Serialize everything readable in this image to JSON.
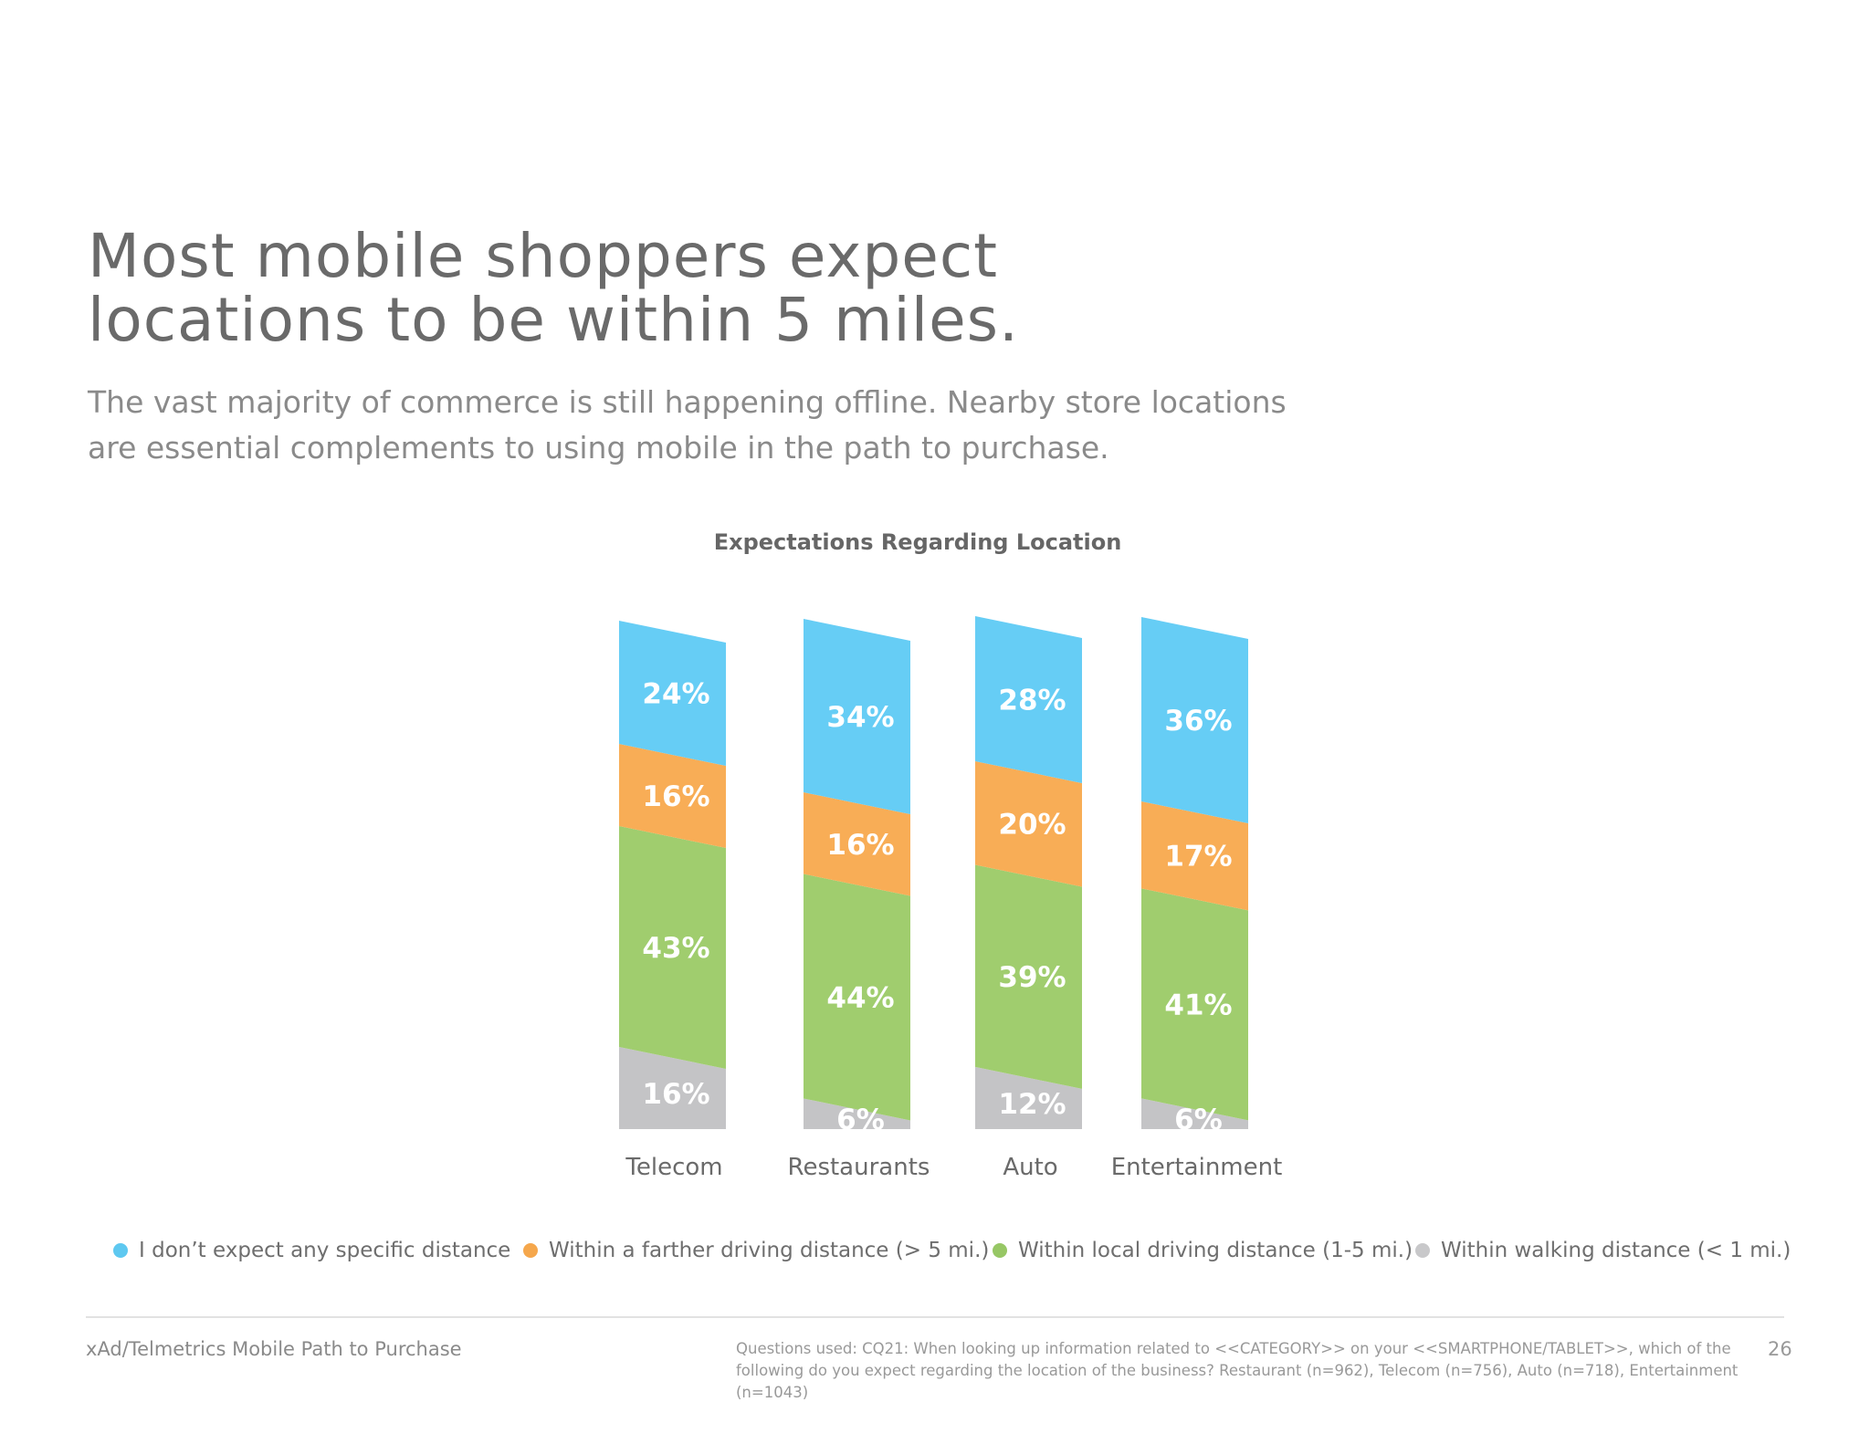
{
  "headline": {
    "line1": "Most mobile shoppers expect",
    "line2": "locations to be within 5 miles."
  },
  "subhead": "The vast majority of commerce is still happening offline. Nearby store locations are essential complements to using mobile in the path to purchase.",
  "chart_data": {
    "type": "bar",
    "stacked": true,
    "title": "Expectations Regarding Location",
    "categories": [
      "Telecom",
      "Restaurants",
      "Auto",
      "Entertainment"
    ],
    "series": [
      {
        "name": "Within walking distance (< 1 mi.)",
        "color": "#c4c4c6",
        "values": [
          16,
          6,
          12,
          6
        ],
        "labels": [
          "16%",
          "6%",
          "12%",
          "6%"
        ]
      },
      {
        "name": "Within local driving distance (1-5 mi.)",
        "color": "#a0cd6e",
        "values": [
          43,
          44,
          39,
          41
        ],
        "labels": [
          "43%",
          "44%",
          "39%",
          "41%"
        ]
      },
      {
        "name": "Within a farther driving distance (> 5 mi.)",
        "color": "#f8ad56",
        "values": [
          16,
          16,
          20,
          17
        ],
        "labels": [
          "16%",
          "16%",
          "20%",
          "17%"
        ]
      },
      {
        "name": "I don’t expect any specific distance",
        "color": "#66cdf5",
        "values": [
          24,
          34,
          28,
          36
        ],
        "labels": [
          "24%",
          "34%",
          "28%",
          "36%"
        ]
      }
    ],
    "legend": "bottom",
    "grid": false
  },
  "legend": [
    {
      "label": "I don’t expect any specific distance",
      "color": "#5ec8f0"
    },
    {
      "label": "Within a farther driving distance (> 5 mi.)",
      "color": "#f5a74c"
    },
    {
      "label": "Within local driving distance (1-5 mi.)",
      "color": "#97c765"
    },
    {
      "label": "Within walking distance (< 1 mi.)",
      "color": "#c8c8ca"
    }
  ],
  "footer": {
    "source": "xAd/Telmetrics Mobile Path to Purchase",
    "note": "Questions used: CQ21: When looking up information related to <<CATEGORY>> on your <<SMARTPHONE/TABLET>>, which of the following do you expect regarding the location of the business? Restaurant (n=962), Telecom (n=756), Auto (n=718), Entertainment (n=1043)",
    "page": "26"
  }
}
